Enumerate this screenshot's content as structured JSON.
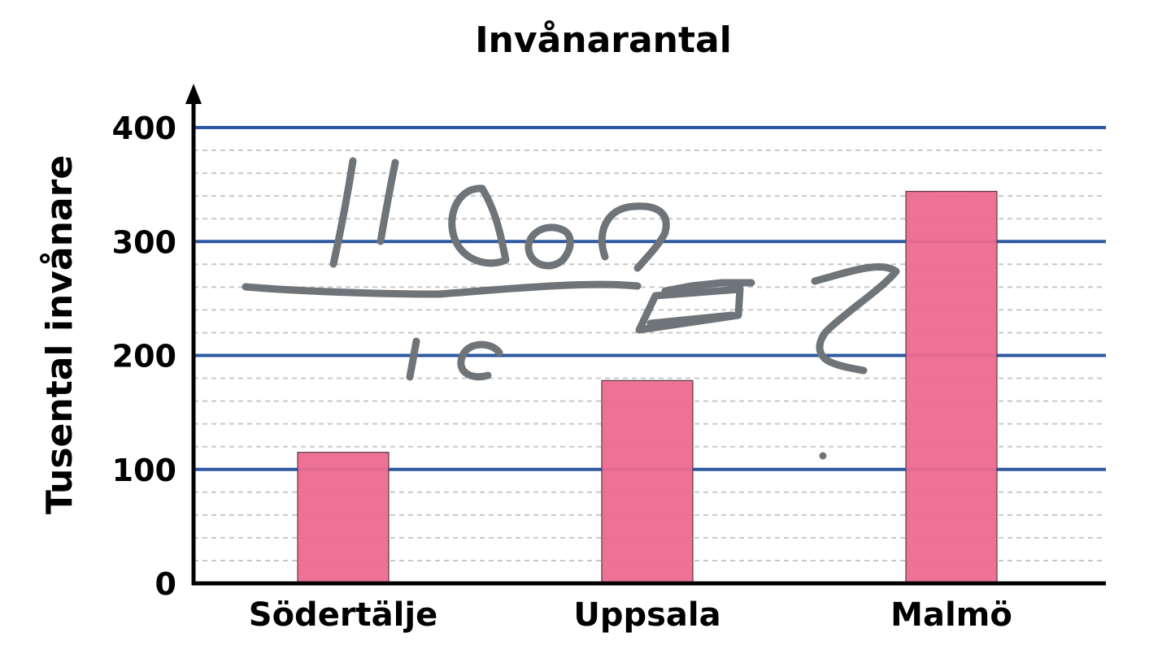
{
  "chart_data": {
    "type": "bar",
    "title": "Invånarantal",
    "xlabel": "",
    "ylabel": "Tusental invånare",
    "categories": [
      "Södertälje",
      "Uppsala",
      "Malmö"
    ],
    "values": [
      115,
      178,
      344
    ],
    "ylim": [
      0,
      400
    ],
    "yticks": [
      "0",
      "100",
      "200",
      "300",
      "400"
    ],
    "major_step": 100,
    "minor_step": 20,
    "grid": true,
    "legend": "none",
    "colors": {
      "bar": "#ec6a8f",
      "bar_edge": "#5a3a44",
      "major_grid": "#2d58a0",
      "minor_grid": "#c8c8c8",
      "axis": "#000000",
      "ink": "#6f7478"
    }
  }
}
